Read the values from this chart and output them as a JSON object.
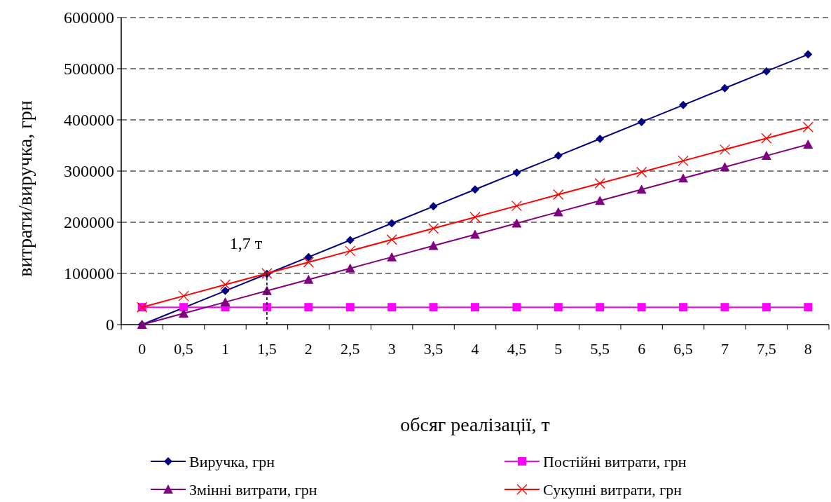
{
  "chart_data": {
    "type": "line",
    "xlabel": "обсяг реалізації,  т",
    "ylabel": "витрати/виручка,  грн",
    "categories": [
      "0",
      "0,5",
      "1",
      "1,5",
      "2",
      "2,5",
      "3",
      "3,5",
      "4",
      "4,5",
      "5",
      "5,5",
      "6",
      "6,5",
      "7",
      "7,5",
      "8"
    ],
    "series": [
      {
        "name": "Виручка, грн",
        "color": "#000080",
        "marker": "diamond",
        "values": [
          0,
          33000,
          66000,
          99000,
          132000,
          165000,
          198000,
          231000,
          264000,
          297000,
          330000,
          363000,
          396000,
          429000,
          462000,
          495000,
          528000
        ]
      },
      {
        "name": "Постійні витрати, грн",
        "color": "#ff00ff",
        "marker": "square",
        "values": [
          34000,
          34000,
          34000,
          34000,
          34000,
          34000,
          34000,
          34000,
          34000,
          34000,
          34000,
          34000,
          34000,
          34000,
          34000,
          34000,
          34000
        ]
      },
      {
        "name": "Змінні витрати, грн",
        "color": "#800080",
        "marker": "triangle",
        "values": [
          0,
          22000,
          44000,
          66000,
          88000,
          110000,
          132000,
          154000,
          176000,
          198000,
          220000,
          242000,
          264000,
          286000,
          308000,
          330000,
          352000
        ]
      },
      {
        "name": "Сукупні витрати, грн",
        "color": "#ff0000",
        "marker": "cross",
        "values": [
          34000,
          56000,
          78000,
          100000,
          122000,
          144000,
          166000,
          188000,
          210000,
          232000,
          254000,
          276000,
          298000,
          320000,
          342000,
          364000,
          386000
        ]
      }
    ],
    "ylim": [
      0,
      600000
    ],
    "yticks": [
      0,
      100000,
      200000,
      300000,
      400000,
      500000,
      600000
    ],
    "grid": "y",
    "legend": "bottom",
    "annotations": [
      {
        "text": "1,7 т",
        "x": "1,5",
        "y": 100000
      }
    ]
  }
}
